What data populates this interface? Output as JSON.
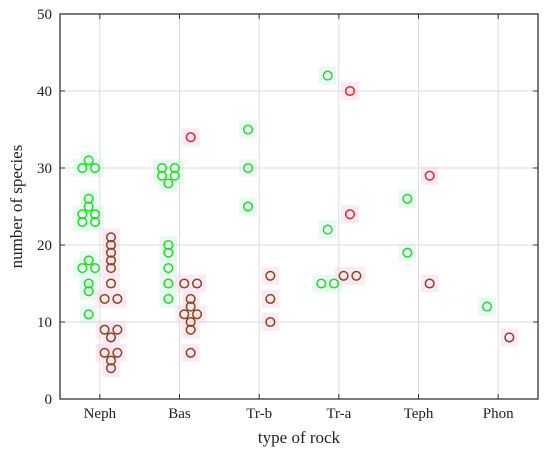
{
  "chart_data": {
    "type": "scatter",
    "title": "",
    "xlabel": "type of rock",
    "ylabel": "number of species",
    "categories": [
      "Neph",
      "Bas",
      "Tr-b",
      "Tr-a",
      "Teph",
      "Phon"
    ],
    "ylim": [
      0,
      50
    ],
    "yticks": [
      0,
      10,
      20,
      30,
      40,
      50
    ],
    "grid": true,
    "legend": "none",
    "colors": {
      "green": "#22dd22",
      "red": "#ee2222",
      "brown": "#8b4513",
      "green_band": "#e6f8f2",
      "pink_band": "#fbe6f4",
      "grid": "#dcdcdc",
      "axis": "#333333"
    },
    "series": [
      {
        "color": "green",
        "points": [
          {
            "x": "Neph",
            "dx": -0.14,
            "y": 31
          },
          {
            "x": "Neph",
            "dx": -0.22,
            "y": 30
          },
          {
            "x": "Neph",
            "dx": -0.06,
            "y": 30
          },
          {
            "x": "Neph",
            "dx": -0.14,
            "y": 26
          },
          {
            "x": "Neph",
            "dx": -0.14,
            "y": 25
          },
          {
            "x": "Neph",
            "dx": -0.22,
            "y": 24
          },
          {
            "x": "Neph",
            "dx": -0.06,
            "y": 24
          },
          {
            "x": "Neph",
            "dx": -0.22,
            "y": 23
          },
          {
            "x": "Neph",
            "dx": -0.06,
            "y": 23
          },
          {
            "x": "Neph",
            "dx": -0.14,
            "y": 18
          },
          {
            "x": "Neph",
            "dx": -0.22,
            "y": 17
          },
          {
            "x": "Neph",
            "dx": -0.06,
            "y": 17
          },
          {
            "x": "Neph",
            "dx": -0.14,
            "y": 15
          },
          {
            "x": "Neph",
            "dx": -0.14,
            "y": 14
          },
          {
            "x": "Neph",
            "dx": -0.14,
            "y": 11
          },
          {
            "x": "Bas",
            "dx": -0.22,
            "y": 30
          },
          {
            "x": "Bas",
            "dx": -0.06,
            "y": 30
          },
          {
            "x": "Bas",
            "dx": -0.22,
            "y": 29
          },
          {
            "x": "Bas",
            "dx": -0.06,
            "y": 29
          },
          {
            "x": "Bas",
            "dx": -0.14,
            "y": 28
          },
          {
            "x": "Bas",
            "dx": -0.14,
            "y": 20
          },
          {
            "x": "Bas",
            "dx": -0.14,
            "y": 19
          },
          {
            "x": "Bas",
            "dx": -0.14,
            "y": 17
          },
          {
            "x": "Bas",
            "dx": -0.14,
            "y": 15
          },
          {
            "x": "Bas",
            "dx": -0.14,
            "y": 13
          },
          {
            "x": "Tr-b",
            "dx": -0.14,
            "y": 35
          },
          {
            "x": "Tr-b",
            "dx": -0.14,
            "y": 30
          },
          {
            "x": "Tr-b",
            "dx": -0.14,
            "y": 25
          },
          {
            "x": "Tr-a",
            "dx": -0.14,
            "y": 42
          },
          {
            "x": "Tr-a",
            "dx": -0.14,
            "y": 22
          },
          {
            "x": "Tr-a",
            "dx": -0.22,
            "y": 15
          },
          {
            "x": "Tr-a",
            "dx": -0.06,
            "y": 15
          },
          {
            "x": "Teph",
            "dx": -0.14,
            "y": 26
          },
          {
            "x": "Teph",
            "dx": -0.14,
            "y": 19
          },
          {
            "x": "Phon",
            "dx": -0.14,
            "y": 12
          }
        ]
      },
      {
        "color": "red",
        "points": [
          {
            "x": "Bas",
            "dx": 0.14,
            "y": 34
          },
          {
            "x": "Tr-a",
            "dx": 0.14,
            "y": 40
          },
          {
            "x": "Tr-a",
            "dx": 0.14,
            "y": 24
          },
          {
            "x": "Teph",
            "dx": 0.14,
            "y": 29
          }
        ]
      },
      {
        "color": "brown",
        "points": [
          {
            "x": "Neph",
            "dx": 0.14,
            "y": 21
          },
          {
            "x": "Neph",
            "dx": 0.14,
            "y": 20
          },
          {
            "x": "Neph",
            "dx": 0.14,
            "y": 19
          },
          {
            "x": "Neph",
            "dx": 0.14,
            "y": 18
          },
          {
            "x": "Neph",
            "dx": 0.14,
            "y": 17
          },
          {
            "x": "Neph",
            "dx": 0.14,
            "y": 15
          },
          {
            "x": "Neph",
            "dx": 0.06,
            "y": 13
          },
          {
            "x": "Neph",
            "dx": 0.22,
            "y": 13
          },
          {
            "x": "Neph",
            "dx": 0.06,
            "y": 9
          },
          {
            "x": "Neph",
            "dx": 0.22,
            "y": 9
          },
          {
            "x": "Neph",
            "dx": 0.14,
            "y": 8
          },
          {
            "x": "Neph",
            "dx": 0.06,
            "y": 6
          },
          {
            "x": "Neph",
            "dx": 0.22,
            "y": 6
          },
          {
            "x": "Neph",
            "dx": 0.14,
            "y": 5
          },
          {
            "x": "Neph",
            "dx": 0.14,
            "y": 4
          },
          {
            "x": "Bas",
            "dx": 0.06,
            "y": 15
          },
          {
            "x": "Bas",
            "dx": 0.22,
            "y": 15
          },
          {
            "x": "Bas",
            "dx": 0.14,
            "y": 13
          },
          {
            "x": "Bas",
            "dx": 0.14,
            "y": 12
          },
          {
            "x": "Bas",
            "dx": 0.06,
            "y": 11
          },
          {
            "x": "Bas",
            "dx": 0.22,
            "y": 11
          },
          {
            "x": "Bas",
            "dx": 0.14,
            "y": 10
          },
          {
            "x": "Bas",
            "dx": 0.14,
            "y": 9
          },
          {
            "x": "Bas",
            "dx": 0.14,
            "y": 6
          },
          {
            "x": "Tr-b",
            "dx": 0.14,
            "y": 16
          },
          {
            "x": "Tr-b",
            "dx": 0.14,
            "y": 13
          },
          {
            "x": "Tr-b",
            "dx": 0.14,
            "y": 10
          },
          {
            "x": "Tr-a",
            "dx": 0.06,
            "y": 16
          },
          {
            "x": "Tr-a",
            "dx": 0.22,
            "y": 16
          },
          {
            "x": "Teph",
            "dx": 0.14,
            "y": 15
          },
          {
            "x": "Phon",
            "dx": 0.14,
            "y": 8
          }
        ]
      }
    ]
  }
}
